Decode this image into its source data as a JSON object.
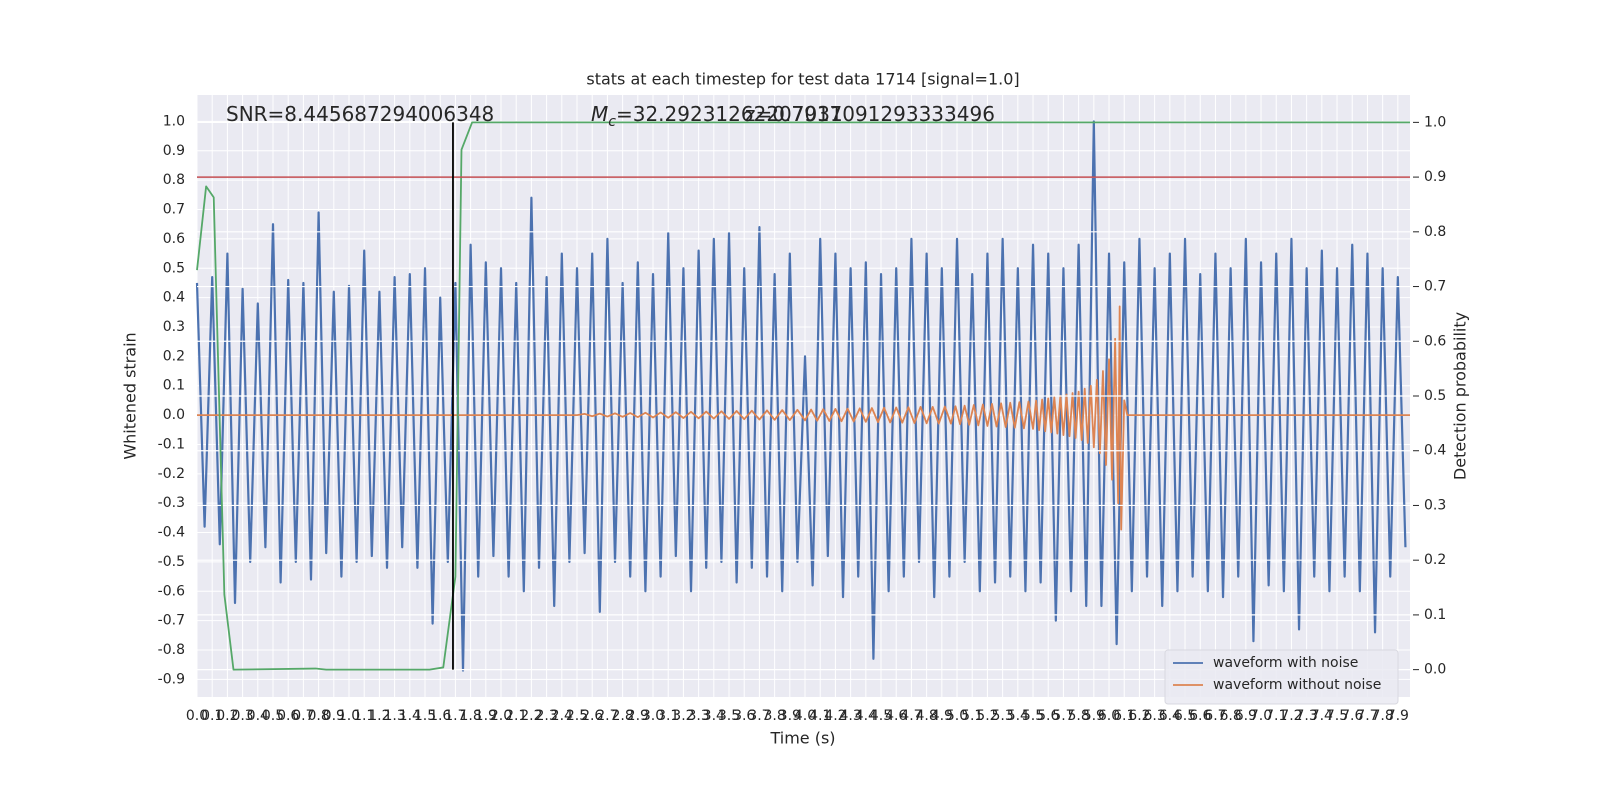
{
  "chart_data": {
    "type": "line",
    "title": "stats at each timestep for test data 1714 [signal=1.0]",
    "x_label": "Time (s)",
    "y_label": "Whitened strain",
    "y2_label": "Detection probability",
    "annotations": [
      "SNR=8.445687294006348",
      {
        "symbol": "M",
        "subscript": "c",
        "text": "=32.29231262207031"
      },
      "z=0.7917091293333496"
    ],
    "xlim": [
      0,
      7.98
    ],
    "ylim": [
      -0.96,
      1.09
    ],
    "y2lim": [
      -0.05,
      1.05
    ],
    "xticks": [
      {
        "value": 0,
        "label": "0.0"
      },
      0.1,
      0.2,
      0.3,
      0.4,
      0.5,
      0.6,
      0.7,
      0.8,
      0.9,
      {
        "value": 1,
        "label": "1.0"
      },
      1.1,
      1.2,
      1.3,
      1.4,
      1.5,
      1.6,
      1.7,
      1.8,
      1.9,
      {
        "value": 2,
        "label": "2.0"
      },
      2.1,
      2.2,
      2.3,
      2.4,
      2.5,
      2.6,
      2.7,
      2.8,
      2.9,
      {
        "value": 3,
        "label": "3.0"
      },
      3.1,
      3.2,
      3.3,
      3.4,
      3.5,
      3.6,
      3.7,
      3.8,
      3.9,
      {
        "value": 4,
        "label": "4.0"
      },
      4.1,
      4.2,
      4.3,
      4.4,
      4.5,
      4.6,
      4.7,
      4.8,
      4.9,
      {
        "value": 5,
        "label": "5.0"
      },
      5.1,
      5.2,
      5.3,
      5.4,
      5.5,
      5.6,
      5.7,
      5.8,
      5.9,
      {
        "value": 6,
        "label": "6.0"
      },
      6.1,
      6.2,
      6.3,
      6.4,
      6.5,
      6.6,
      6.7,
      6.8,
      6.9,
      {
        "value": 7,
        "label": "7.0"
      },
      7.1,
      7.2,
      7.3,
      7.4,
      7.5,
      7.6,
      7.7,
      7.8,
      7.9
    ],
    "yticks": [
      -0.9,
      -0.8,
      -0.7,
      -0.6,
      -0.5,
      -0.4,
      -0.3,
      -0.2,
      -0.1,
      {
        "value": 0,
        "label": "0.0"
      },
      0.1,
      0.2,
      0.3,
      0.4,
      0.5,
      0.6,
      0.7,
      0.8,
      0.9,
      {
        "value": 1,
        "label": "1.0"
      }
    ],
    "y2ticks": [
      {
        "value": 0,
        "label": "0.0"
      },
      0.1,
      0.2,
      0.3,
      0.4,
      0.5,
      0.6,
      0.7,
      0.8,
      0.9,
      {
        "value": 1,
        "label": "1.0"
      }
    ],
    "grid": true,
    "legend": "lower right",
    "series": [
      {
        "name": "waveform with noise",
        "color": "#4c72b0",
        "x": [
          0,
          0.05,
          0.1,
          0.15,
          0.2,
          0.25,
          0.3,
          0.35,
          0.4,
          0.45,
          0.5,
          0.55,
          0.6,
          0.65,
          0.7,
          0.75,
          0.8,
          0.85,
          0.9,
          0.95,
          1,
          1.05,
          1.1,
          1.15,
          1.2,
          1.25,
          1.3,
          1.35,
          1.4,
          1.45,
          1.5,
          1.55,
          1.6,
          1.65,
          1.7,
          1.75,
          1.8,
          1.85,
          1.9,
          1.95,
          2,
          2.05,
          2.1,
          2.15,
          2.2,
          2.25,
          2.3,
          2.35,
          2.4,
          2.45,
          2.5,
          2.55,
          2.6,
          2.65,
          2.7,
          2.75,
          2.8,
          2.85,
          2.9,
          2.95,
          3,
          3.05,
          3.1,
          3.15,
          3.2,
          3.25,
          3.3,
          3.35,
          3.4,
          3.45,
          3.5,
          3.55,
          3.6,
          3.65,
          3.7,
          3.75,
          3.8,
          3.85,
          3.9,
          3.95,
          4,
          4.05,
          4.1,
          4.15,
          4.2,
          4.25,
          4.3,
          4.35,
          4.4,
          4.45,
          4.5,
          4.55,
          4.6,
          4.65,
          4.7,
          4.75,
          4.8,
          4.85,
          4.9,
          4.95,
          5,
          5.05,
          5.1,
          5.15,
          5.2,
          5.25,
          5.3,
          5.35,
          5.4,
          5.45,
          5.5,
          5.55,
          5.6,
          5.65,
          5.7,
          5.75,
          5.8,
          5.85,
          5.9,
          5.95,
          6,
          6.05,
          6.1,
          6.15,
          6.2,
          6.25,
          6.3,
          6.35,
          6.4,
          6.45,
          6.5,
          6.55,
          6.6,
          6.65,
          6.7,
          6.75,
          6.8,
          6.85,
          6.9,
          6.95,
          7,
          7.05,
          7.1,
          7.15,
          7.2,
          7.25,
          7.3,
          7.35,
          7.4,
          7.45,
          7.5,
          7.55,
          7.6,
          7.65,
          7.7,
          7.75,
          7.8,
          7.85,
          7.9,
          7.95
        ],
        "values": [
          0.45,
          -0.38,
          0.47,
          -0.44,
          0.55,
          -0.64,
          0.43,
          -0.5,
          0.38,
          -0.45,
          0.65,
          -0.57,
          0.46,
          -0.5,
          0.45,
          -0.56,
          0.69,
          -0.47,
          0.42,
          -0.55,
          0.44,
          -0.5,
          0.56,
          -0.48,
          0.42,
          -0.52,
          0.47,
          -0.45,
          0.48,
          -0.52,
          0.5,
          -0.71,
          0.4,
          -0.5,
          0.45,
          -0.87,
          0.58,
          -0.55,
          0.52,
          -0.48,
          0.5,
          -0.55,
          0.45,
          -0.6,
          0.74,
          -0.52,
          0.47,
          -0.65,
          0.55,
          -0.5,
          0.5,
          -0.47,
          0.55,
          -0.67,
          0.6,
          -0.5,
          0.45,
          -0.55,
          0.52,
          -0.6,
          0.48,
          -0.55,
          0.62,
          -0.48,
          0.5,
          -0.6,
          0.56,
          -0.52,
          0.6,
          -0.5,
          0.62,
          -0.57,
          0.5,
          -0.52,
          0.64,
          -0.55,
          0.48,
          -0.6,
          0.55,
          -0.5,
          0.2,
          -0.58,
          0.6,
          -0.48,
          0.55,
          -0.62,
          0.5,
          -0.55,
          0.52,
          -0.83,
          0.48,
          -0.6,
          0.5,
          -0.55,
          0.6,
          -0.5,
          0.55,
          -0.62,
          0.5,
          -0.55,
          0.6,
          -0.5,
          0.48,
          -0.6,
          0.55,
          -0.57,
          0.6,
          -0.55,
          0.5,
          -0.6,
          0.58,
          -0.57,
          0.55,
          -0.7,
          0.5,
          -0.6,
          0.58,
          -0.65,
          1.0,
          -0.65,
          0.55,
          -0.78,
          0.52,
          -0.6,
          0.6,
          -0.55,
          0.5,
          -0.65,
          0.55,
          -0.6,
          0.6,
          -0.55,
          0.48,
          -0.6,
          0.55,
          -0.62,
          0.5,
          -0.55,
          0.6,
          -0.77,
          0.52,
          -0.58,
          0.55,
          -0.6,
          0.6,
          -0.73,
          0.5,
          -0.55,
          0.56,
          -0.6,
          0.5,
          -0.55,
          0.58,
          -0.6,
          0.55,
          -0.74,
          0.5,
          -0.55,
          0.47,
          -0.45
        ]
      },
      {
        "name": "waveform without noise",
        "color": "#dd8452",
        "x": [
          0,
          2.5,
          2.55,
          2.6,
          2.65,
          2.7,
          2.75,
          2.8,
          2.85,
          2.9,
          2.95,
          3,
          3.05,
          3.1,
          3.15,
          3.2,
          3.25,
          3.3,
          3.35,
          3.4,
          3.45,
          3.5,
          3.55,
          3.6,
          3.65,
          3.7,
          3.75,
          3.8,
          3.85,
          3.9,
          3.95,
          4,
          4.04,
          4.08,
          4.12,
          4.16,
          4.2,
          4.24,
          4.28,
          4.32,
          4.36,
          4.4,
          4.44,
          4.48,
          4.52,
          4.56,
          4.6,
          4.64,
          4.68,
          4.72,
          4.76,
          4.8,
          4.84,
          4.88,
          4.92,
          4.96,
          4.99,
          5.02,
          5.05,
          5.08,
          5.11,
          5.14,
          5.17,
          5.2,
          5.23,
          5.26,
          5.29,
          5.32,
          5.35,
          5.38,
          5.41,
          5.44,
          5.47,
          5.5,
          5.52,
          5.54,
          5.56,
          5.58,
          5.6,
          5.62,
          5.64,
          5.66,
          5.68,
          5.7,
          5.72,
          5.74,
          5.76,
          5.78,
          5.8,
          5.82,
          5.84,
          5.86,
          5.88,
          5.9,
          5.92,
          5.94,
          5.96,
          5.98,
          6,
          6.02,
          6.04,
          6.06,
          6.07,
          6.08,
          6.1,
          6.12,
          7.98
        ],
        "values": [
          0,
          0,
          0.004,
          -0.004,
          0.005,
          -0.005,
          0.006,
          -0.006,
          0.007,
          -0.007,
          0.008,
          -0.008,
          0.009,
          -0.009,
          0.01,
          -0.01,
          0.011,
          -0.011,
          0.012,
          -0.012,
          0.013,
          -0.013,
          0.014,
          -0.014,
          0.015,
          -0.015,
          0.016,
          -0.016,
          0.017,
          -0.017,
          0.018,
          -0.018,
          0.019,
          -0.019,
          0.02,
          -0.02,
          0.021,
          -0.021,
          0.022,
          -0.022,
          0.023,
          -0.023,
          0.024,
          -0.024,
          0.025,
          -0.025,
          0.026,
          -0.026,
          0.027,
          -0.027,
          0.028,
          -0.028,
          0.028,
          -0.029,
          0.029,
          -0.029,
          0.03,
          -0.031,
          0.032,
          -0.033,
          0.034,
          -0.035,
          0.036,
          -0.037,
          0.038,
          -0.039,
          0.04,
          -0.041,
          0.042,
          -0.043,
          0.044,
          -0.045,
          0.046,
          -0.047,
          0.049,
          -0.051,
          0.053,
          -0.055,
          0.057,
          -0.059,
          0.061,
          -0.063,
          0.066,
          -0.068,
          0.07,
          -0.072,
          0.075,
          -0.078,
          0.08,
          -0.085,
          0.09,
          -0.095,
          0.1,
          -0.11,
          0.12,
          -0.13,
          0.15,
          -0.17,
          0.19,
          -0.22,
          0.26,
          -0.3,
          0.37,
          -0.39,
          0.05,
          0,
          0
        ]
      },
      {
        "color": "#55a868",
        "axis": "y2",
        "x": [
          0,
          0.06,
          0.11,
          0.18,
          0.24,
          0.78,
          0.85,
          1.53,
          1.62,
          1.7,
          1.74,
          1.81,
          7.98
        ],
        "values": [
          0.73,
          0.883,
          0.863,
          0.137,
          0,
          0.002,
          0,
          0,
          0.004,
          0.17,
          0.95,
          1.0,
          1.0
        ]
      }
    ],
    "hlines": [
      {
        "value": 0.9,
        "axis": "y2",
        "color": "#c44e52"
      }
    ],
    "vlines": [
      {
        "x": 1.684,
        "from": 0,
        "to": 1,
        "axis": "y2",
        "color": "#000000"
      }
    ]
  }
}
